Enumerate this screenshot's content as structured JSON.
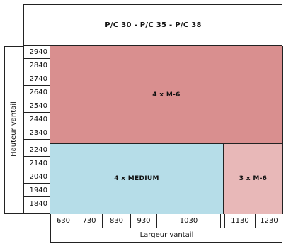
{
  "header": {
    "title": "P/C 30 - P/C 35 - P/C 38"
  },
  "axes": {
    "y_label": "Hauteur vantail",
    "x_label": "Largeur vantail",
    "y_ticks": [
      "2940",
      "2840",
      "2740",
      "2640",
      "2540",
      "2440",
      "2340",
      "2240",
      "2140",
      "2040",
      "1940",
      "1840"
    ],
    "x_ticks": [
      "630",
      "730",
      "830",
      "930",
      "1030",
      "1130",
      "1230"
    ]
  },
  "regions": {
    "top": {
      "label": "4 x M-6",
      "color": "#d98f8f"
    },
    "bottom_left": {
      "label": "4 x MEDIUM",
      "color": "#b6dde8"
    },
    "bottom_right": {
      "label": "3 x M-6",
      "color": "#e8b8b8"
    }
  }
}
